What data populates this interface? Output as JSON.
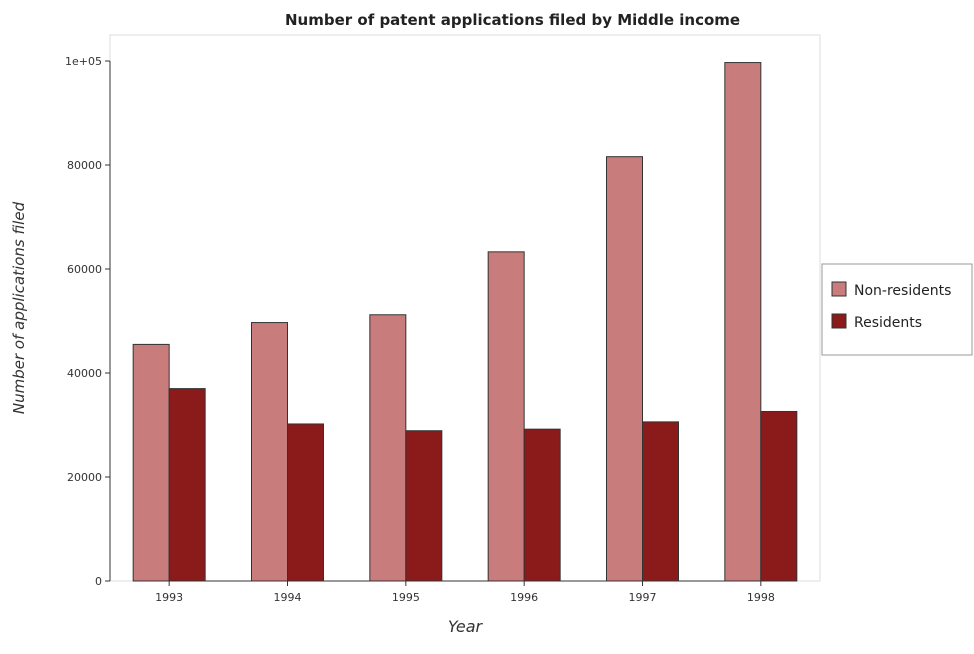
{
  "chart_data": {
    "type": "bar",
    "title": "Number of patent applications filed by Middle income",
    "xlabel": "Year",
    "ylabel": "Number of applications filed",
    "categories": [
      "1993",
      "1994",
      "1995",
      "1996",
      "1997",
      "1998"
    ],
    "series": [
      {
        "name": "Non-residents",
        "color": "#c87c7c",
        "values": [
          45500,
          49700,
          51200,
          63300,
          81600,
          99700
        ]
      },
      {
        "name": "Residents",
        "color": "#8b1a1a",
        "values": [
          37000,
          30200,
          28900,
          29200,
          30600,
          32600
        ]
      }
    ],
    "ylim": [
      0,
      105000
    ],
    "yticks": [
      0,
      20000,
      40000,
      60000,
      80000,
      100000
    ],
    "ytick_labels": [
      "0",
      "20000",
      "40000",
      "60000",
      "80000",
      "1e+05"
    ],
    "legend_position": "right",
    "grid": false
  }
}
